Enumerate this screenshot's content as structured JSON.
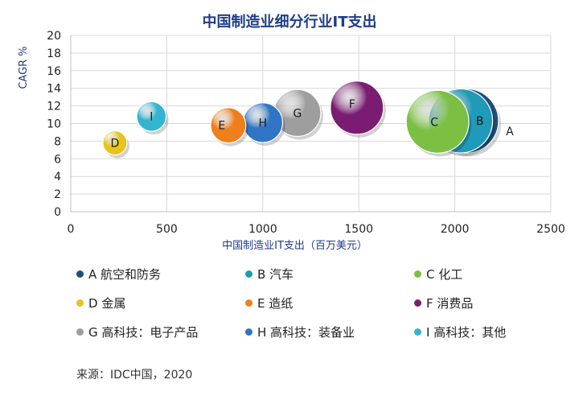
{
  "chart_data": {
    "type": "scatter",
    "title": "中国制造业细分行业IT支出",
    "xlabel": "中国制造业IT支出（百万美元）",
    "ylabel": "CAGR %",
    "xlim": [
      0,
      2500
    ],
    "ylim": [
      0,
      20
    ],
    "x_ticks": [
      "0",
      "500",
      "1000",
      "1500",
      "2000",
      "2500"
    ],
    "y_ticks": [
      "0",
      "2",
      "4",
      "6",
      "8",
      "10",
      "12",
      "14",
      "16",
      "18",
      "20"
    ],
    "grid": true,
    "legend_position": "bottom",
    "series": [
      {
        "name": "A 航空和防务",
        "label": "A",
        "x": 2060,
        "y": 10.3,
        "size": 1.0,
        "color": "#1f4e79"
      },
      {
        "name": "B 汽车",
        "label": "B",
        "x": 2030,
        "y": 10.3,
        "size": 0.99,
        "color": "#1f9ab8"
      },
      {
        "name": "C 化工",
        "label": "C",
        "x": 1910,
        "y": 10.2,
        "size": 0.95,
        "color": "#7cc043"
      },
      {
        "name": "D 金属",
        "label": "D",
        "x": 230,
        "y": 7.8,
        "size": 0.14,
        "color": "#e8c31c"
      },
      {
        "name": "E 造纸",
        "label": "E",
        "x": 820,
        "y": 9.8,
        "size": 0.3,
        "color": "#ef7f1a"
      },
      {
        "name": "F 消费品",
        "label": "F",
        "x": 1490,
        "y": 11.8,
        "size": 0.68,
        "color": "#7a1d72"
      },
      {
        "name": "G 高科技：电子产品",
        "label": "G",
        "x": 1180,
        "y": 11.2,
        "size": 0.53,
        "color": "#9e9e9e"
      },
      {
        "name": "H 高科技：装备业",
        "label": "H",
        "x": 1000,
        "y": 10.1,
        "size": 0.38,
        "color": "#2f75c4"
      },
      {
        "name": "I 高科技：其他",
        "label": "I",
        "x": 420,
        "y": 10.8,
        "size": 0.21,
        "color": "#35b4d0"
      }
    ]
  },
  "source": "来源：IDC中国，2020"
}
